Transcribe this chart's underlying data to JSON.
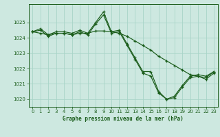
{
  "background_color": "#cde8e0",
  "grid_color": "#a8d4c8",
  "line_color": "#1a5c1a",
  "title": "Graphe pression niveau de la mer (hPa)",
  "ylim": [
    1019.5,
    1026.2
  ],
  "xlim": [
    -0.5,
    23.5
  ],
  "yticks": [
    1020,
    1021,
    1022,
    1023,
    1024,
    1025
  ],
  "xticks": [
    0,
    1,
    2,
    3,
    4,
    5,
    6,
    7,
    8,
    9,
    10,
    11,
    12,
    13,
    14,
    15,
    16,
    17,
    18,
    19,
    20,
    21,
    22,
    23
  ],
  "series": [
    {
      "x": [
        0,
        1,
        2,
        3,
        4,
        5,
        6,
        7,
        8,
        9,
        10,
        11,
        12,
        13,
        14,
        15,
        16,
        17,
        18,
        19,
        20,
        21,
        22,
        23
      ],
      "y": [
        1024.4,
        1024.6,
        1024.2,
        1024.4,
        1024.4,
        1024.3,
        1024.5,
        1024.3,
        1025.0,
        1025.7,
        1024.4,
        1024.5,
        1023.6,
        1022.7,
        1021.8,
        1021.8,
        1020.5,
        1020.0,
        1020.2,
        1020.9,
        1021.5,
        1021.6,
        1021.5,
        1021.8
      ]
    },
    {
      "x": [
        0,
        1,
        2,
        3,
        4,
        5,
        6,
        7,
        8,
        9,
        10,
        11,
        12,
        13,
        14,
        15,
        16,
        17,
        18,
        19,
        20,
        21,
        22,
        23
      ],
      "y": [
        1024.4,
        1024.5,
        1024.1,
        1024.3,
        1024.3,
        1024.2,
        1024.4,
        1024.2,
        1024.9,
        1025.5,
        1024.3,
        1024.4,
        1023.5,
        1022.6,
        1021.7,
        1021.5,
        1020.4,
        1020.0,
        1020.1,
        1020.8,
        1021.4,
        1021.5,
        1021.3,
        1021.7
      ]
    },
    {
      "x": [
        0,
        1,
        2,
        3,
        4,
        5,
        6,
        7,
        8,
        9,
        10,
        11,
        12,
        13,
        14,
        15,
        16,
        17,
        18,
        19,
        20,
        21,
        22,
        23
      ],
      "y": [
        1024.4,
        1024.3,
        1024.2,
        1024.3,
        1024.3,
        1024.2,
        1024.3,
        1024.3,
        1024.45,
        1024.45,
        1024.4,
        1024.3,
        1024.1,
        1023.8,
        1023.5,
        1023.2,
        1022.8,
        1022.5,
        1022.2,
        1021.9,
        1021.6,
        1021.5,
        1021.4,
        1021.8
      ]
    }
  ]
}
